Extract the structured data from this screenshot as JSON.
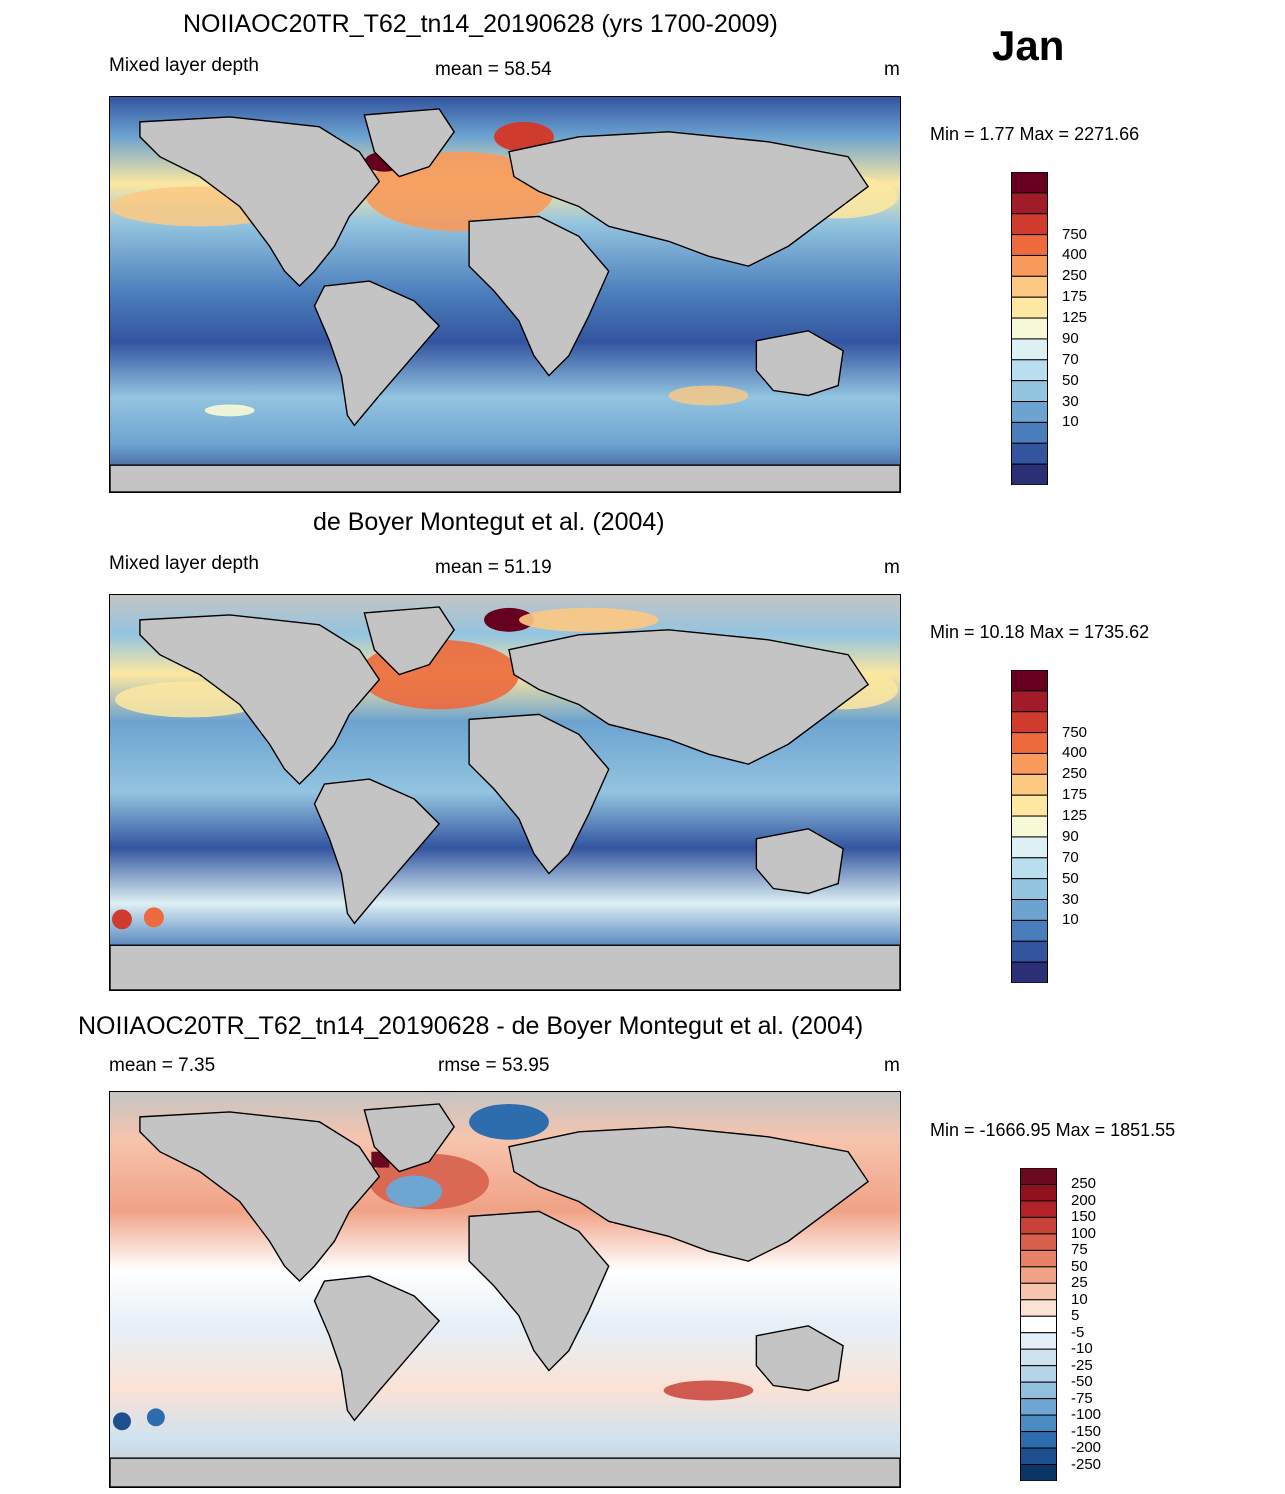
{
  "month": "Jan",
  "panels": [
    {
      "id": "model",
      "title": "NOIIAOC20TR_T62_tn14_20190628 (yrs 1700-2009)",
      "left_label": "Mixed layer depth",
      "center_label": "mean =  58.54",
      "units": "m",
      "minmax": "Min =    1.77 Max = 2271.66",
      "colorbar_labels": [
        "750",
        "400",
        "250",
        "175",
        "125",
        "90",
        "70",
        "50",
        "30",
        "10"
      ],
      "colorbar_colors": [
        "#67001f",
        "#a11b29",
        "#cf3c2e",
        "#ec6a3c",
        "#f79a5b",
        "#fdc982",
        "#fee7a0",
        "#f7f9d6",
        "#ddf0f4",
        "#b9dfee",
        "#93c4e0",
        "#6ca3d0",
        "#4a7dbb",
        "#3355a0",
        "#2a2f76"
      ],
      "colorbar_ticks": 10,
      "colorbar_cells": 15
    },
    {
      "id": "obs",
      "title": "de Boyer Montegut et al. (2004)",
      "left_label": "Mixed layer depth",
      "center_label": "mean =  51.19",
      "units": "m",
      "minmax": "Min =  10.18 Max = 1735.62",
      "colorbar_labels": [
        "750",
        "400",
        "250",
        "175",
        "125",
        "90",
        "70",
        "50",
        "30",
        "10"
      ],
      "colorbar_colors": [
        "#67001f",
        "#a11b29",
        "#cf3c2e",
        "#ec6a3c",
        "#f79a5b",
        "#fdc982",
        "#fee7a0",
        "#f7f9d6",
        "#ddf0f4",
        "#b9dfee",
        "#93c4e0",
        "#6ca3d0",
        "#4a7dbb",
        "#3355a0",
        "#2a2f76"
      ],
      "colorbar_ticks": 10,
      "colorbar_cells": 15
    },
    {
      "id": "diff",
      "title": "NOIIAOC20TR_T62_tn14_20190628 - de Boyer Montegut et al. (2004)",
      "left_label": "mean =   7.35",
      "center_label": "rmse =  53.95",
      "units": "m",
      "minmax": "Min = -1666.95 Max = 1851.55",
      "colorbar_labels": [
        "250",
        "200",
        "150",
        "100",
        "75",
        "50",
        "25",
        "10",
        "5",
        "-5",
        "-10",
        "-25",
        "-50",
        "-75",
        "-100",
        "-150",
        "-200",
        "-250"
      ],
      "colorbar_colors": [
        "#6b0a1e",
        "#92111f",
        "#b42229",
        "#c9423a",
        "#d7614d",
        "#e58167",
        "#f0a286",
        "#f7c4ad",
        "#fbe2d5",
        "#ffffff",
        "#e5eff7",
        "#cfe2f0",
        "#b5d3e9",
        "#93bfdf",
        "#6ea6d1",
        "#4a8bc1",
        "#2d6cad",
        "#1b4f8e",
        "#0b3566"
      ],
      "colorbar_ticks": 18,
      "colorbar_cells": 19
    }
  ],
  "map_colors": {
    "land": "#c4c4c4",
    "coast": "#000000"
  }
}
